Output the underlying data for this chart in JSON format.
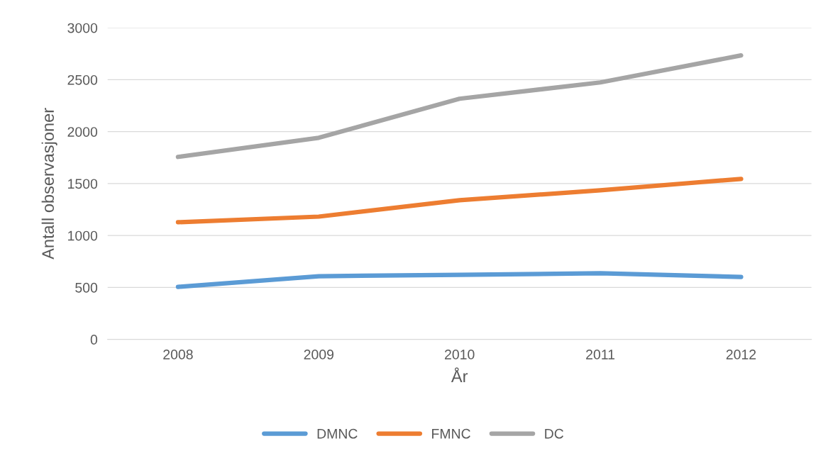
{
  "chart_data": {
    "type": "line",
    "xlabel": "År",
    "ylabel": "Antall observasjoner",
    "categories": [
      "2008",
      "2009",
      "2010",
      "2011",
      "2012"
    ],
    "series": [
      {
        "name": "DMNC",
        "color": "#5b9bd5",
        "values": [
          506,
          608,
          622,
          636,
          601
        ]
      },
      {
        "name": "FMNC",
        "color": "#ed7d31",
        "values": [
          1128,
          1182,
          1340,
          1435,
          1545
        ]
      },
      {
        "name": "DC",
        "color": "#a5a5a5",
        "values": [
          1757,
          1941,
          2317,
          2474,
          2734
        ]
      }
    ],
    "ylim": [
      0,
      3000
    ],
    "yticks": [
      0,
      500,
      1000,
      1500,
      2000,
      2500,
      3000
    ],
    "grid": "y",
    "legend": "bottom",
    "marker": "none",
    "line_style": "solid"
  }
}
